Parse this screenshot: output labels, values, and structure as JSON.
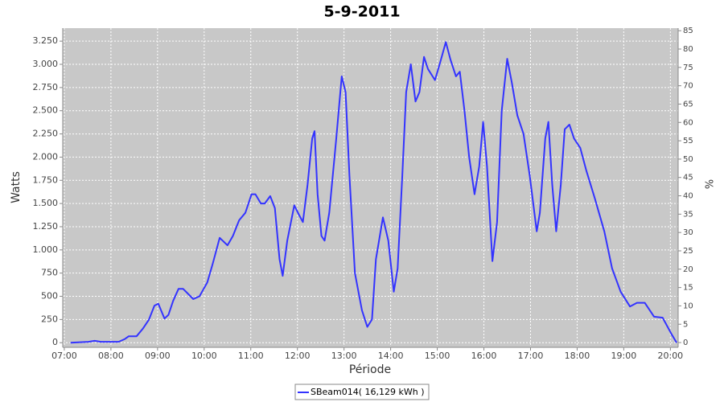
{
  "chart_data": {
    "type": "line",
    "title": "5-9-2011",
    "x_label": "Période",
    "y_label": "Watts",
    "y2_label": "%",
    "x": [
      "07:08",
      "07:31",
      "07:39",
      "07:47",
      "08:10",
      "08:18",
      "08:23",
      "08:33",
      "08:41",
      "08:49",
      "08:56",
      "09:01",
      "09:09",
      "09:14",
      "09:20",
      "09:27",
      "09:33",
      "09:46",
      "09:54",
      "10:04",
      "10:11",
      "10:20",
      "10:30",
      "10:37",
      "10:45",
      "10:53",
      "11:01",
      "11:06",
      "11:13",
      "11:18",
      "11:25",
      "11:31",
      "11:37",
      "11:41",
      "11:47",
      "11:56",
      "12:02",
      "12:07",
      "12:13",
      "12:19",
      "12:22",
      "12:26",
      "12:31",
      "12:35",
      "12:41",
      "12:50",
      "12:57",
      "13:02",
      "13:07",
      "13:14",
      "13:23",
      "13:30",
      "13:36",
      "13:41",
      "13:50",
      "13:57",
      "14:04",
      "14:09",
      "14:15",
      "14:20",
      "14:26",
      "14:32",
      "14:37",
      "14:43",
      "14:48",
      "14:57",
      "15:03",
      "15:11",
      "15:17",
      "15:24",
      "15:29",
      "15:35",
      "15:41",
      "15:48",
      "15:54",
      "15:59",
      "16:04",
      "16:11",
      "16:17",
      "16:23",
      "16:30",
      "16:36",
      "16:43",
      "16:51",
      "16:59",
      "17:08",
      "17:12",
      "17:19",
      "17:23",
      "17:28",
      "17:33",
      "17:39",
      "17:44",
      "17:50",
      "17:56",
      "18:04",
      "18:12",
      "18:23",
      "18:35",
      "18:45",
      "18:56",
      "19:08",
      "19:17",
      "19:27",
      "19:39",
      "19:50",
      "20:01",
      "20:08"
    ],
    "series": [
      {
        "name": "SBeam014( 16,129 kWh )",
        "color": "#3333ff",
        "values": [
          0,
          10,
          20,
          10,
          10,
          40,
          70,
          70,
          150,
          250,
          400,
          420,
          260,
          300,
          450,
          580,
          580,
          470,
          500,
          650,
          850,
          1130,
          1050,
          1150,
          1320,
          1400,
          1600,
          1600,
          1500,
          1500,
          1580,
          1450,
          900,
          720,
          1100,
          1480,
          1380,
          1300,
          1700,
          2200,
          2280,
          1600,
          1150,
          1100,
          1400,
          2200,
          2870,
          2700,
          1800,
          750,
          350,
          170,
          250,
          900,
          1350,
          1100,
          550,
          800,
          1800,
          2700,
          3000,
          2600,
          2700,
          3080,
          2950,
          2830,
          3000,
          3240,
          3050,
          2870,
          2920,
          2500,
          2000,
          1600,
          1900,
          2380,
          1900,
          880,
          1300,
          2500,
          3060,
          2800,
          2450,
          2250,
          1800,
          1200,
          1400,
          2200,
          2380,
          1700,
          1200,
          1700,
          2300,
          2350,
          2200,
          2100,
          1850,
          1550,
          1200,
          800,
          550,
          390,
          430,
          430,
          280,
          270,
          100,
          0
        ]
      }
    ],
    "xlim": [
      "06:58",
      "20:10"
    ],
    "xticks": [
      "07:00",
      "08:00",
      "09:00",
      "10:00",
      "11:00",
      "12:00",
      "13:00",
      "14:00",
      "15:00",
      "16:00",
      "17:00",
      "18:00",
      "19:00",
      "20:00"
    ],
    "ylim": [
      -50,
      3390
    ],
    "yticks": [
      0,
      250,
      500,
      750,
      {
        "value": 1000,
        "label": "1.000"
      },
      {
        "value": 1250,
        "label": "1.250"
      },
      {
        "value": 1500,
        "label": "1.500"
      },
      {
        "value": 1750,
        "label": "1.750"
      },
      {
        "value": 2000,
        "label": "2.000"
      },
      {
        "value": 2250,
        "label": "2.250"
      },
      {
        "value": 2500,
        "label": "2.500"
      },
      {
        "value": 2750,
        "label": "2.750"
      },
      {
        "value": 3000,
        "label": "3.000"
      },
      {
        "value": 3250,
        "label": "3.250"
      }
    ],
    "y2lim": [
      -1.3,
      85.7
    ],
    "y2ticks": [
      0,
      5,
      10,
      15,
      20,
      25,
      30,
      35,
      40,
      45,
      50,
      55,
      60,
      65,
      70,
      75,
      80,
      85
    ],
    "grid": true
  }
}
